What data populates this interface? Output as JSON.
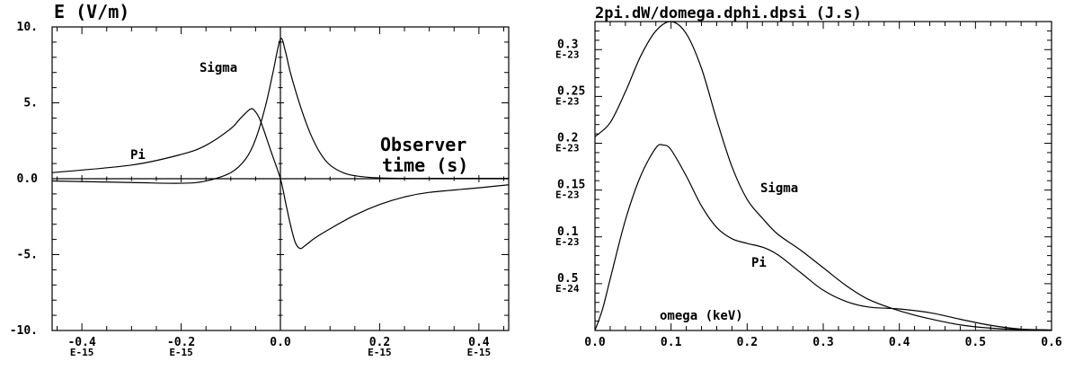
{
  "chart_data": [
    {
      "type": "line",
      "title": "E (V/m)",
      "xlabel": "Observer\ntime (s)",
      "ylabel": "",
      "xlim": [
        -4.6e-16,
        4.6e-16
      ],
      "ylim": [
        -10,
        10
      ],
      "x_ticks": [
        {
          "value": -4e-16,
          "label": "-0.4",
          "exp": "E-15"
        },
        {
          "value": -2e-16,
          "label": "-0.2",
          "exp": "E-15"
        },
        {
          "value": 0,
          "label": "0.0",
          "exp": ""
        },
        {
          "value": 2e-16,
          "label": "0.2",
          "exp": "E-15"
        },
        {
          "value": 4e-16,
          "label": "0.4",
          "exp": "E-15"
        }
      ],
      "y_ticks": [
        {
          "value": 10,
          "label": "10."
        },
        {
          "value": 5,
          "label": "5."
        },
        {
          "value": 0,
          "label": "0.0"
        },
        {
          "value": -5,
          "label": "-5."
        },
        {
          "value": -10,
          "label": "-10."
        }
      ],
      "series": [
        {
          "name": "Sigma",
          "x": [
            -4.6e-16,
            -3e-16,
            -2e-16,
            -1.5e-16,
            -1e-16,
            -7e-17,
            -5e-17,
            -3e-17,
            -1.5e-17,
            0,
            1e-17,
            2e-17,
            4e-17,
            6e-17,
            8e-17,
            1e-16,
            1.3e-16,
            1.6e-16,
            2e-16,
            2.5e-16,
            3e-16,
            4e-16,
            4.6e-16
          ],
          "values": [
            -0.15,
            -0.25,
            -0.3,
            -0.15,
            0.4,
            1.3,
            2.6,
            4.8,
            7.0,
            9.2,
            8.4,
            7.0,
            4.8,
            3.0,
            1.7,
            0.9,
            0.35,
            0.15,
            0.05,
            0.02,
            0.02,
            0.02,
            0.02
          ]
        },
        {
          "name": "Pi",
          "x": [
            -4.6e-16,
            -3e-16,
            -2e-16,
            -1.5e-16,
            -1e-16,
            -8e-17,
            -6e-17,
            -5e-17,
            -4e-17,
            -2e-17,
            0,
            1e-17,
            2e-17,
            3e-17,
            4e-17,
            5e-17,
            7e-17,
            1e-16,
            1.5e-16,
            2e-16,
            2.5e-16,
            3e-16,
            4e-16,
            4.6e-16
          ],
          "values": [
            0.4,
            0.9,
            1.6,
            2.2,
            3.3,
            4.0,
            4.6,
            4.4,
            3.8,
            1.9,
            0.0,
            -1.5,
            -3.0,
            -4.2,
            -4.6,
            -4.4,
            -3.9,
            -3.3,
            -2.4,
            -1.7,
            -1.2,
            -0.9,
            -0.6,
            -0.4
          ]
        }
      ],
      "annotations": [
        "Sigma",
        "Pi"
      ]
    },
    {
      "type": "line",
      "title": "2pi.dW/domega.dphi.dpsi  (J.s)",
      "xlabel": "omega (keV)",
      "ylabel": "",
      "xlim": [
        0,
        0.6
      ],
      "ylim": [
        0,
        3.3e-24
      ],
      "x_ticks": [
        {
          "value": 0,
          "label": "0.0"
        },
        {
          "value": 0.1,
          "label": "0.1"
        },
        {
          "value": 0.2,
          "label": "0.2"
        },
        {
          "value": 0.3,
          "label": "0.3"
        },
        {
          "value": 0.4,
          "label": "0.4"
        },
        {
          "value": 0.5,
          "label": "0.5"
        },
        {
          "value": 0.6,
          "label": "0.6"
        }
      ],
      "y_ticks": [
        {
          "value": 3e-24,
          "label": "0.3",
          "exp": "E-23"
        },
        {
          "value": 2.5e-24,
          "label": "0.25",
          "exp": "E-23"
        },
        {
          "value": 2e-24,
          "label": "0.2",
          "exp": "E-23"
        },
        {
          "value": 1.5e-24,
          "label": "0.15",
          "exp": "E-23"
        },
        {
          "value": 1e-24,
          "label": "0.1",
          "exp": "E-23"
        },
        {
          "value": 5e-25,
          "label": "0.5",
          "exp": "E-24"
        }
      ],
      "series": [
        {
          "name": "Sigma",
          "x": [
            0,
            0.02,
            0.04,
            0.06,
            0.08,
            0.1,
            0.12,
            0.14,
            0.16,
            0.18,
            0.2,
            0.22,
            0.24,
            0.27,
            0.3,
            0.33,
            0.36,
            0.4,
            0.44,
            0.48,
            0.52,
            0.56,
            0.6
          ],
          "values": [
            2.07e-24,
            2.22e-24,
            2.55e-24,
            2.93e-24,
            3.2e-24,
            3.3e-24,
            3.17e-24,
            2.8e-24,
            2.25e-24,
            1.75e-24,
            1.4e-24,
            1.2e-24,
            1.03e-24,
            8.6e-25,
            6.7e-25,
            4.8e-25,
            3.3e-25,
            2.1e-25,
            1.25e-25,
            6e-26,
            2.5e-26,
            1e-26,
            5e-27
          ]
        },
        {
          "name": "Pi",
          "x": [
            0,
            0.01,
            0.02,
            0.04,
            0.06,
            0.08,
            0.09,
            0.1,
            0.12,
            0.14,
            0.16,
            0.18,
            0.2,
            0.22,
            0.24,
            0.27,
            0.3,
            0.33,
            0.36,
            0.4,
            0.44,
            0.48,
            0.52,
            0.56,
            0.6
          ],
          "values": [
            0,
            2.3e-25,
            5.5e-25,
            1.18e-24,
            1.65e-24,
            1.95e-24,
            1.98e-24,
            1.93e-24,
            1.65e-24,
            1.33e-24,
            1.1e-24,
            9.8e-25,
            9.3e-25,
            8.9e-25,
            8.1e-25,
            6.2e-25,
            4.3e-25,
            3.1e-25,
            2.5e-25,
            2.3e-25,
            1.9e-25,
            1.2e-25,
            5.5e-26,
            1.5e-26,
            5e-27
          ]
        }
      ],
      "annotations": [
        "Sigma",
        "Pi"
      ]
    }
  ]
}
